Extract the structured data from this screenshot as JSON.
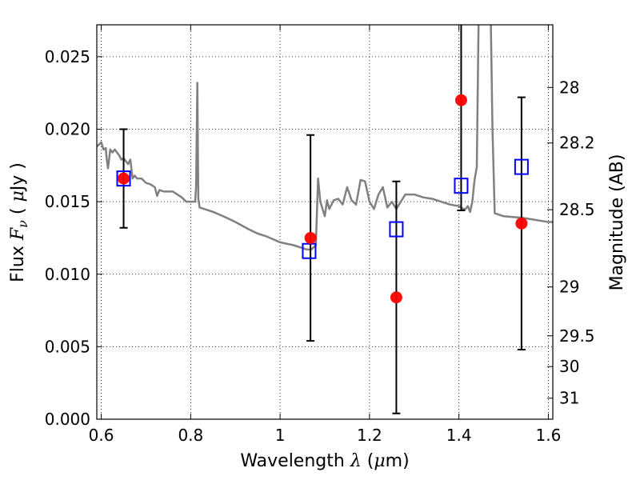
{
  "chart_data": {
    "type": "scatter",
    "xlabel": {
      "prefix": "Wavelength ",
      "symbol": "λ",
      "unit_open": " (",
      "unit_mu": "μ",
      "unit_rest": "m)"
    },
    "ylabel": {
      "prefix": "Flux ",
      "symbol": "F",
      "subscript": "ν",
      "unit_open": " ( ",
      "unit_mu": "μ",
      "unit_rest": "Jy )"
    },
    "y2label": "Magnitude (AB)",
    "xlim": [
      0.59,
      1.61
    ],
    "ylim": [
      0.0,
      0.0272
    ],
    "grid": true,
    "x_ticks": [
      {
        "value": 0.6,
        "label": "0.6"
      },
      {
        "value": 0.8,
        "label": "0.8"
      },
      {
        "value": 1.0,
        "label": "1"
      },
      {
        "value": 1.2,
        "label": "1.2"
      },
      {
        "value": 1.4,
        "label": "1.4"
      },
      {
        "value": 1.6,
        "label": "1.6"
      }
    ],
    "y_ticks": [
      {
        "value": 0.0,
        "label": "0.000"
      },
      {
        "value": 0.005,
        "label": "0.005"
      },
      {
        "value": 0.01,
        "label": "0.010"
      },
      {
        "value": 0.015,
        "label": "0.015"
      },
      {
        "value": 0.02,
        "label": "0.020"
      },
      {
        "value": 0.025,
        "label": "0.025"
      }
    ],
    "y2_ticks": [
      {
        "flux": 0.02288,
        "label": "28"
      },
      {
        "flux": 0.01905,
        "label": "28.2"
      },
      {
        "flux": 0.01445,
        "label": "28.5"
      },
      {
        "flux": 0.00912,
        "label": "29"
      },
      {
        "flux": 0.00575,
        "label": "29.5"
      },
      {
        "flux": 0.00363,
        "label": "30"
      },
      {
        "flux": 0.00145,
        "label": "31"
      }
    ],
    "model_spectrum": {
      "color": "#808080",
      "x": [
        0.59,
        0.6,
        0.605,
        0.61,
        0.612,
        0.615,
        0.62,
        0.625,
        0.63,
        0.64,
        0.645,
        0.65,
        0.66,
        0.665,
        0.67,
        0.675,
        0.68,
        0.69,
        0.7,
        0.71,
        0.72,
        0.725,
        0.73,
        0.74,
        0.75,
        0.76,
        0.77,
        0.78,
        0.79,
        0.8,
        0.81,
        0.812,
        0.815,
        0.817,
        0.82,
        0.83,
        0.85,
        0.88,
        0.9,
        0.93,
        0.95,
        0.97,
        1.0,
        1.03,
        1.05,
        1.06,
        1.07,
        1.08,
        1.085,
        1.09,
        1.1,
        1.105,
        1.11,
        1.12,
        1.13,
        1.14,
        1.15,
        1.16,
        1.17,
        1.18,
        1.19,
        1.2,
        1.21,
        1.22,
        1.23,
        1.24,
        1.25,
        1.26,
        1.27,
        1.28,
        1.29,
        1.3,
        1.32,
        1.34,
        1.36,
        1.38,
        1.4,
        1.41,
        1.415,
        1.42,
        1.425,
        1.43,
        1.435,
        1.44,
        1.445,
        1.45,
        1.46,
        1.47,
        1.475,
        1.48,
        1.5,
        1.54,
        1.56,
        1.58,
        1.6,
        1.61
      ],
      "y": [
        0.0188,
        0.0191,
        0.0186,
        0.0187,
        0.018,
        0.0173,
        0.0186,
        0.0184,
        0.0186,
        0.0182,
        0.0179,
        0.018,
        0.0176,
        0.0179,
        0.0166,
        0.0168,
        0.0166,
        0.0166,
        0.0163,
        0.0162,
        0.016,
        0.0154,
        0.0158,
        0.0157,
        0.0157,
        0.0157,
        0.0155,
        0.0153,
        0.015,
        0.015,
        0.015,
        0.016,
        0.0232,
        0.0152,
        0.0146,
        0.0145,
        0.0143,
        0.0139,
        0.0136,
        0.0131,
        0.0128,
        0.0126,
        0.0122,
        0.012,
        0.0118,
        0.0117,
        0.0117,
        0.012,
        0.0166,
        0.015,
        0.014,
        0.0151,
        0.0145,
        0.0151,
        0.0152,
        0.0148,
        0.016,
        0.0151,
        0.0148,
        0.0165,
        0.0164,
        0.015,
        0.0145,
        0.0155,
        0.016,
        0.0146,
        0.015,
        0.0145,
        0.015,
        0.0155,
        0.0155,
        0.0155,
        0.0153,
        0.0152,
        0.015,
        0.0148,
        0.0147,
        0.0145,
        0.0145,
        0.0147,
        0.0143,
        0.015,
        0.0165,
        0.0174,
        0.03,
        0.03,
        0.03,
        0.03,
        0.02,
        0.0142,
        0.014,
        0.0139,
        0.0138,
        0.0137,
        0.0136,
        0.0136
      ]
    },
    "series": [
      {
        "marker": "circle",
        "color": "#ff0000",
        "points": [
          {
            "x": 0.65,
            "y": 0.0166,
            "err": 0.0034
          },
          {
            "x": 1.068,
            "y": 0.0125,
            "err": 0.0071
          },
          {
            "x": 1.26,
            "y": 0.0084,
            "err": 0.008
          },
          {
            "x": 1.405,
            "y": 0.022,
            "err": 0.0076
          },
          {
            "x": 1.54,
            "y": 0.0135,
            "err": 0.0087
          }
        ],
        "error_color": "#000000"
      },
      {
        "marker": "square",
        "color": "#0000ff",
        "points": [
          {
            "x": 0.65,
            "y": 0.0166
          },
          {
            "x": 1.065,
            "y": 0.0116
          },
          {
            "x": 1.26,
            "y": 0.0131
          },
          {
            "x": 1.405,
            "y": 0.0161
          },
          {
            "x": 1.54,
            "y": 0.0174
          }
        ]
      }
    ]
  }
}
